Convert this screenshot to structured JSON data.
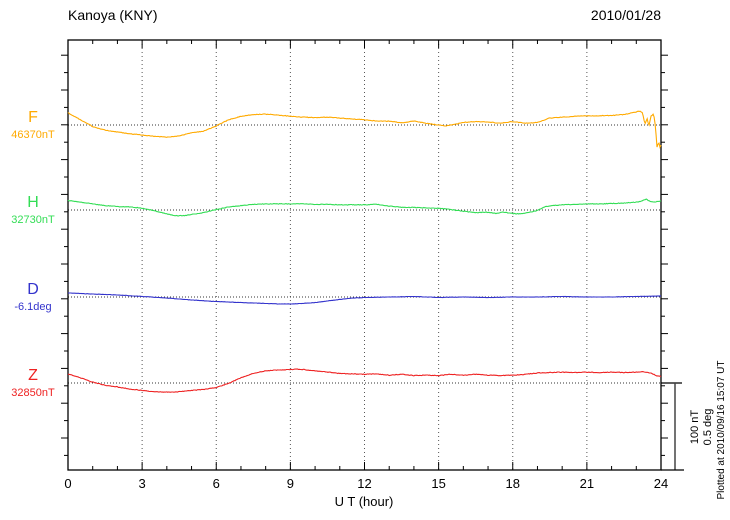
{
  "header": {
    "title": "Kanoya (KNY)",
    "date": "2010/01/28"
  },
  "axis": {
    "x_label": "U T (hour)",
    "x_ticks": [
      "0",
      "3",
      "6",
      "9",
      "12",
      "15",
      "18",
      "21",
      "24"
    ],
    "grid_hours": [
      3,
      6,
      9,
      12,
      15,
      18,
      21
    ]
  },
  "scale_bar": {
    "nt_label": "100 nT",
    "deg_label": "0.5 deg"
  },
  "footer": {
    "plotted_at": "Plotted at 2010/09/16 15:07 UT"
  },
  "colors": {
    "axis": "#000000",
    "grid": "#555555",
    "baseline": "#333333"
  },
  "chart_data": {
    "type": "line",
    "title": "Kanoya (KNY) magnetogram",
    "date": "2010/01/28",
    "xlabel": "U T (hour)",
    "x_range_hours": [
      0,
      24
    ],
    "x_major_tick_hours": 3,
    "x_minor_tick_hours": 1,
    "scale": {
      "nT_per_division": 100,
      "deg_per_division": 0.5
    },
    "grid": "dotted vertical at 3h intervals, dotted horizontal baseline per trace",
    "legend_position": "left of each trace",
    "series": [
      {
        "name": "F",
        "baseline_label": "46370nT",
        "unit": "nT",
        "color": "#ffaa00",
        "points": [
          [
            0,
            14
          ],
          [
            0.5,
            6
          ],
          [
            0.9,
            0
          ],
          [
            1,
            -2
          ],
          [
            1.5,
            -6
          ],
          [
            2,
            -8
          ],
          [
            2.5,
            -10
          ],
          [
            3,
            -11.5
          ],
          [
            3.5,
            -13
          ],
          [
            4,
            -14
          ],
          [
            4.5,
            -12.5
          ],
          [
            5,
            -9
          ],
          [
            5.5,
            -7
          ],
          [
            6,
            -1
          ],
          [
            6.5,
            6
          ],
          [
            7,
            10
          ],
          [
            7.5,
            12
          ],
          [
            8,
            12.5
          ],
          [
            8.5,
            11.5
          ],
          [
            9,
            10
          ],
          [
            9.5,
            9
          ],
          [
            10,
            8.5
          ],
          [
            10.5,
            9
          ],
          [
            11,
            8
          ],
          [
            11.5,
            7
          ],
          [
            12,
            6
          ],
          [
            12.5,
            4.5
          ],
          [
            13,
            4.5
          ],
          [
            13.5,
            2.5
          ],
          [
            14,
            4.5
          ],
          [
            14.5,
            2
          ],
          [
            15,
            0
          ],
          [
            15.3,
            -1
          ],
          [
            15.7,
            1
          ],
          [
            16,
            3
          ],
          [
            16.5,
            4
          ],
          [
            17,
            3.5
          ],
          [
            17.5,
            2
          ],
          [
            18,
            4
          ],
          [
            18.5,
            2
          ],
          [
            19,
            3
          ],
          [
            19.5,
            8
          ],
          [
            20,
            9
          ],
          [
            20.5,
            10
          ],
          [
            21,
            10.5
          ],
          [
            21.5,
            10.5
          ],
          [
            22,
            11
          ],
          [
            22.5,
            12
          ],
          [
            23,
            15
          ],
          [
            23.15,
            16
          ],
          [
            23.25,
            14
          ],
          [
            23.35,
            1
          ],
          [
            23.45,
            8
          ],
          [
            23.5,
            -2.5
          ],
          [
            23.6,
            10.5
          ],
          [
            23.7,
            12.5
          ],
          [
            23.75,
            4.5
          ],
          [
            23.8,
            -11.5
          ],
          [
            23.85,
            -29
          ],
          [
            23.9,
            -17
          ],
          [
            23.95,
            -26.5
          ],
          [
            24,
            -23
          ]
        ]
      },
      {
        "name": "H",
        "baseline_label": "32730nT",
        "unit": "nT",
        "color": "#33dd55",
        "points": [
          [
            0,
            11
          ],
          [
            0.5,
            9
          ],
          [
            1,
            7
          ],
          [
            1.5,
            5
          ],
          [
            2,
            4
          ],
          [
            2.5,
            3.5
          ],
          [
            3,
            2
          ],
          [
            3.5,
            -1
          ],
          [
            4,
            -4.5
          ],
          [
            4.3,
            -6.5
          ],
          [
            4.7,
            -6.5
          ],
          [
            5,
            -5
          ],
          [
            5.5,
            -3
          ],
          [
            6,
            0.5
          ],
          [
            6.5,
            3.5
          ],
          [
            7,
            5
          ],
          [
            7.5,
            6.5
          ],
          [
            8,
            7
          ],
          [
            9,
            7
          ],
          [
            9.5,
            7
          ],
          [
            10,
            6.5
          ],
          [
            10.5,
            6.5
          ],
          [
            11,
            6
          ],
          [
            11.5,
            6
          ],
          [
            12,
            6
          ],
          [
            12.5,
            6.5
          ],
          [
            13,
            4.5
          ],
          [
            13.5,
            3
          ],
          [
            14,
            3
          ],
          [
            14.5,
            2.5
          ],
          [
            15,
            2
          ],
          [
            15.5,
            0.5
          ],
          [
            16,
            -1.5
          ],
          [
            16.5,
            -3
          ],
          [
            17,
            -2.5
          ],
          [
            17.3,
            -4
          ],
          [
            17.6,
            -2.5
          ],
          [
            18,
            -4
          ],
          [
            18.3,
            -4.5
          ],
          [
            18.7,
            -2.5
          ],
          [
            19,
            -0.5
          ],
          [
            19.3,
            4
          ],
          [
            19.6,
            5
          ],
          [
            20,
            6
          ],
          [
            20.5,
            6.5
          ],
          [
            21,
            7
          ],
          [
            21.5,
            7
          ],
          [
            22,
            7.5
          ],
          [
            22.5,
            8
          ],
          [
            23,
            9
          ],
          [
            23.2,
            10
          ],
          [
            23.4,
            12.5
          ],
          [
            23.5,
            10.5
          ],
          [
            23.7,
            9
          ],
          [
            24,
            10.5
          ]
        ]
      },
      {
        "name": "D",
        "baseline_label": "-6.1deg",
        "unit": "deg",
        "color": "#3333cc",
        "points": [
          [
            0,
            0.023
          ],
          [
            1,
            0.017
          ],
          [
            2,
            0.012
          ],
          [
            3,
            0.003
          ],
          [
            4,
            -0.006
          ],
          [
            5,
            -0.017
          ],
          [
            6,
            -0.026
          ],
          [
            7,
            -0.032
          ],
          [
            8,
            -0.037
          ],
          [
            8.5,
            -0.04
          ],
          [
            9,
            -0.04
          ],
          [
            9.5,
            -0.037
          ],
          [
            10,
            -0.032
          ],
          [
            10.5,
            -0.023
          ],
          [
            11,
            -0.014
          ],
          [
            11.5,
            -0.006
          ],
          [
            12,
            -0.003
          ],
          [
            13,
            0
          ],
          [
            14,
            0.003
          ],
          [
            15,
            -0.003
          ],
          [
            16,
            0
          ],
          [
            17,
            -0.003
          ],
          [
            18,
            0
          ],
          [
            19,
            0
          ],
          [
            20,
            0.003
          ],
          [
            21,
            0
          ],
          [
            22,
            0
          ],
          [
            23,
            0.003
          ],
          [
            24,
            0.006
          ]
        ]
      },
      {
        "name": "Z",
        "baseline_label": "32850nT",
        "unit": "nT",
        "color": "#ee2222",
        "points": [
          [
            0,
            10.5
          ],
          [
            0.5,
            6
          ],
          [
            1,
            1
          ],
          [
            1.5,
            -2.5
          ],
          [
            2,
            -4.5
          ],
          [
            2.5,
            -7
          ],
          [
            3,
            -8.5
          ],
          [
            3.5,
            -10
          ],
          [
            4,
            -10.5
          ],
          [
            4.5,
            -10
          ],
          [
            5,
            -8.5
          ],
          [
            5.5,
            -7.5
          ],
          [
            6,
            -5
          ],
          [
            6.5,
            -0.5
          ],
          [
            7,
            6
          ],
          [
            7.5,
            11
          ],
          [
            8,
            14
          ],
          [
            8.5,
            15
          ],
          [
            9,
            15.5
          ],
          [
            9.3,
            16
          ],
          [
            9.7,
            15
          ],
          [
            10,
            14
          ],
          [
            10.5,
            12.5
          ],
          [
            11,
            11
          ],
          [
            11.5,
            10.5
          ],
          [
            12,
            10
          ],
          [
            12.5,
            10.5
          ],
          [
            13,
            9
          ],
          [
            13.5,
            10
          ],
          [
            14,
            8.5
          ],
          [
            14.5,
            9
          ],
          [
            15,
            8.5
          ],
          [
            15.5,
            10
          ],
          [
            16,
            9
          ],
          [
            16.5,
            10
          ],
          [
            17,
            9
          ],
          [
            17.5,
            8.5
          ],
          [
            18,
            9
          ],
          [
            18.5,
            10
          ],
          [
            19,
            11.5
          ],
          [
            19.5,
            12
          ],
          [
            20,
            12.5
          ],
          [
            20.5,
            12
          ],
          [
            21,
            12.5
          ],
          [
            21.5,
            12
          ],
          [
            22,
            12.5
          ],
          [
            22.5,
            12
          ],
          [
            23,
            12.5
          ],
          [
            23.3,
            13
          ],
          [
            23.6,
            11.5
          ],
          [
            23.8,
            8.5
          ],
          [
            24,
            7.5
          ]
        ]
      }
    ]
  }
}
